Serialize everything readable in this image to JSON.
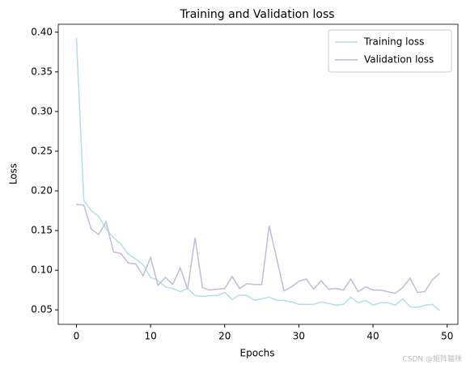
{
  "chart_data": {
    "type": "line",
    "title": "Training and Validation loss",
    "x_label": "Epochs",
    "y_label": "Loss",
    "x": [
      0,
      1,
      2,
      3,
      4,
      5,
      6,
      7,
      8,
      9,
      10,
      11,
      12,
      13,
      14,
      15,
      16,
      17,
      18,
      19,
      20,
      21,
      22,
      23,
      24,
      25,
      26,
      27,
      28,
      29,
      30,
      31,
      32,
      33,
      34,
      35,
      36,
      37,
      38,
      39,
      40,
      41,
      42,
      43,
      44,
      45,
      46,
      47,
      48,
      49
    ],
    "series": [
      {
        "name": "Training loss",
        "color": "#b0e0e6",
        "values": [
          0.393,
          0.188,
          0.175,
          0.168,
          0.152,
          0.141,
          0.133,
          0.12,
          0.114,
          0.107,
          0.091,
          0.087,
          0.079,
          0.077,
          0.073,
          0.077,
          0.068,
          0.067,
          0.068,
          0.068,
          0.072,
          0.063,
          0.069,
          0.068,
          0.062,
          0.064,
          0.066,
          0.062,
          0.062,
          0.06,
          0.057,
          0.057,
          0.057,
          0.06,
          0.058,
          0.056,
          0.057,
          0.066,
          0.059,
          0.062,
          0.056,
          0.059,
          0.059,
          0.056,
          0.064,
          0.054,
          0.053,
          0.056,
          0.057,
          0.049
        ]
      },
      {
        "name": "Validation loss",
        "color": "#c0bbdf",
        "values": [
          0.183,
          0.182,
          0.152,
          0.145,
          0.161,
          0.123,
          0.121,
          0.109,
          0.108,
          0.093,
          0.116,
          0.081,
          0.091,
          0.082,
          0.103,
          0.076,
          0.141,
          0.078,
          0.075,
          0.076,
          0.077,
          0.092,
          0.077,
          0.083,
          0.082,
          0.082,
          0.156,
          0.115,
          0.074,
          0.079,
          0.086,
          0.089,
          0.076,
          0.087,
          0.076,
          0.077,
          0.075,
          0.089,
          0.073,
          0.079,
          0.075,
          0.075,
          0.073,
          0.071,
          0.078,
          0.09,
          0.072,
          0.073,
          0.088,
          0.096
        ]
      }
    ],
    "xlim": [
      -2.45,
      51.45
    ],
    "xticks": [
      0,
      10,
      20,
      30,
      40,
      50
    ],
    "ylim": [
      0.0318,
      0.41
    ],
    "yticks": [
      0.05,
      {
        "value": 0.1,
        "label": "0.10"
      },
      0.15,
      {
        "value": 0.2,
        "label": "0.20"
      },
      0.25,
      {
        "value": 0.3,
        "label": "0.30"
      },
      0.35,
      {
        "value": 0.4,
        "label": "0.40"
      }
    ],
    "legend": "upper right",
    "watermark": "CSDN @矩阵猫咪"
  }
}
